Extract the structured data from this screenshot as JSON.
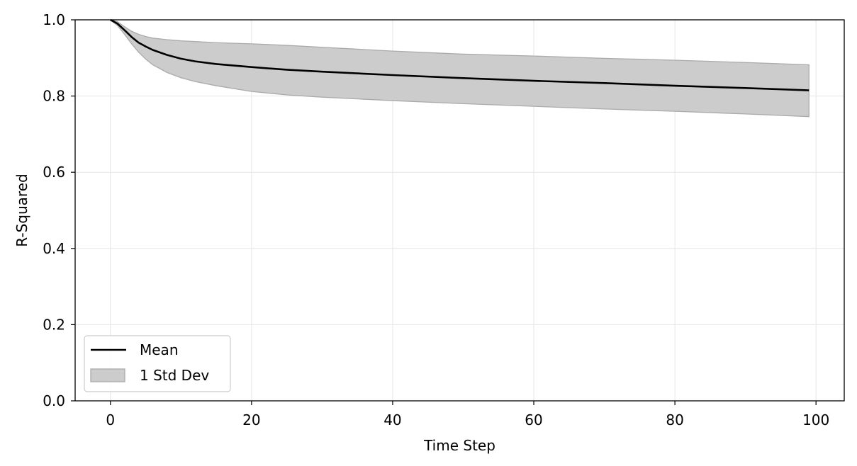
{
  "chart_data": {
    "type": "line",
    "title": "",
    "xlabel": "Time Step",
    "ylabel": "R-Squared",
    "xlim": [
      -5,
      104
    ],
    "ylim": [
      0.0,
      1.0
    ],
    "x_ticks": [
      0,
      20,
      40,
      60,
      80,
      100
    ],
    "y_ticks": [
      0.0,
      0.2,
      0.4,
      0.6,
      0.8,
      1.0
    ],
    "x_tick_labels": [
      "0",
      "20",
      "40",
      "60",
      "80",
      "100"
    ],
    "y_tick_labels": [
      "0.0",
      "0.2",
      "0.4",
      "0.6",
      "0.8",
      "1.0"
    ],
    "grid": true,
    "legend": {
      "position": "lower-left",
      "entries": [
        {
          "label": "Mean",
          "kind": "line",
          "color": "#000000"
        },
        {
          "label": "1 Std Dev",
          "kind": "band",
          "color": "#cccccc"
        }
      ]
    },
    "x": [
      0,
      1,
      2,
      3,
      4,
      5,
      6,
      8,
      10,
      12,
      15,
      20,
      25,
      30,
      40,
      50,
      60,
      70,
      80,
      90,
      99
    ],
    "series": [
      {
        "name": "Mean",
        "color": "#000000",
        "values": [
          1.0,
          0.99,
          0.973,
          0.955,
          0.94,
          0.93,
          0.921,
          0.908,
          0.898,
          0.891,
          0.884,
          0.876,
          0.869,
          0.864,
          0.855,
          0.847,
          0.84,
          0.834,
          0.827,
          0.821,
          0.815
        ]
      }
    ],
    "band": {
      "name": "1 Std Dev",
      "color": "#cccccc",
      "edge_color": "#aaaaaa",
      "upper": [
        1.0,
        0.995,
        0.982,
        0.97,
        0.962,
        0.956,
        0.952,
        0.948,
        0.945,
        0.943,
        0.94,
        0.937,
        0.933,
        0.928,
        0.918,
        0.91,
        0.905,
        0.899,
        0.894,
        0.888,
        0.882
      ],
      "lower": [
        1.0,
        0.985,
        0.962,
        0.937,
        0.915,
        0.897,
        0.882,
        0.862,
        0.848,
        0.838,
        0.827,
        0.812,
        0.803,
        0.797,
        0.788,
        0.78,
        0.773,
        0.766,
        0.76,
        0.753,
        0.746
      ]
    }
  }
}
